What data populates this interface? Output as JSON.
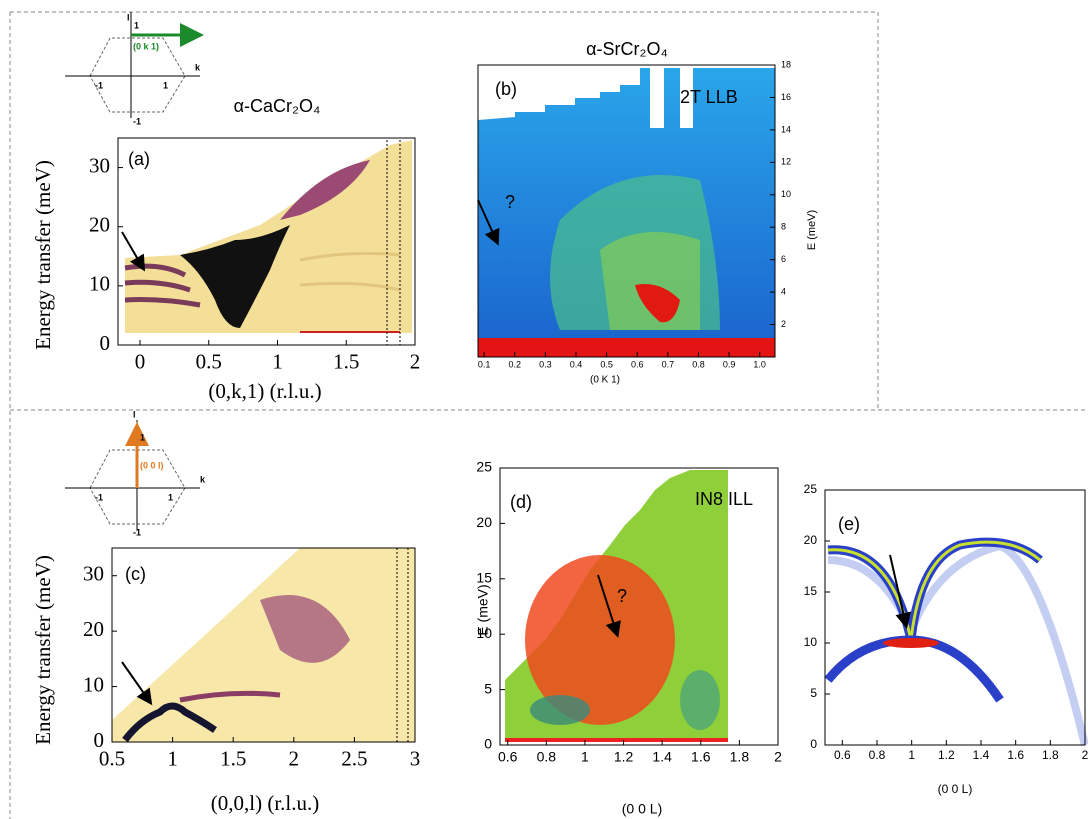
{
  "chart_data": [
    {
      "type": "heatmap",
      "panel_label": "(a)",
      "title": "α-CaCr₂O₄",
      "xlabel": "(0,k,1) (r.l.u.)",
      "ylabel": "Energy transfer (meV)",
      "xlim": [
        -0.16,
        2
      ],
      "ylim": [
        0,
        35
      ],
      "xticks": [
        0,
        0.5,
        1,
        1.5,
        2
      ],
      "yticks": [
        0,
        10,
        20,
        30
      ],
      "inset": {
        "labels": [
          "l",
          "1",
          "k",
          "-1",
          "1",
          "-1"
        ],
        "arrow_label": "(0 k 1)"
      }
    },
    {
      "type": "heatmap",
      "panel_label": "(b)",
      "title": "α-SrCr₂O₄",
      "xlabel": "(0 K 1)",
      "ylabel": "E (meV)",
      "y_axis_side": "right",
      "xlim": [
        0.08,
        1.05
      ],
      "ylim": [
        0,
        18
      ],
      "xticks": [
        0.1,
        0.2,
        0.3,
        0.4,
        0.5,
        0.6,
        0.7,
        0.8,
        0.9,
        {
          "value": 1,
          "label": "1.0"
        }
      ],
      "yticks": [
        2,
        4,
        6,
        8,
        10,
        12,
        14,
        16,
        18
      ],
      "annotations": [
        "2T LLB",
        "?"
      ]
    },
    {
      "type": "heatmap",
      "panel_label": "(c)",
      "xlabel": "(0,0,l) (r.l.u.)",
      "ylabel": "Energy transfer (meV)",
      "xlim": [
        0.5,
        3
      ],
      "ylim": [
        0,
        35
      ],
      "xticks": [
        0.5,
        1,
        1.5,
        2,
        2.5,
        3
      ],
      "yticks": [
        0,
        10,
        20,
        30
      ],
      "inset": {
        "labels": [
          "l",
          "1",
          "k",
          "-1",
          "1",
          "-1"
        ],
        "arrow_label": "(0 0 l)"
      }
    },
    {
      "type": "heatmap",
      "panel_label": "(d)",
      "xlabel": "(0 0 L)",
      "ylabel": "E (meV)",
      "xlim": [
        0.56,
        2
      ],
      "ylim": [
        0,
        25
      ],
      "xticks": [
        0.6,
        0.8,
        1,
        1.2,
        1.4,
        1.6,
        1.8,
        2
      ],
      "yticks": [
        0,
        5,
        10,
        15,
        20,
        25
      ],
      "annotations": [
        "IN8 ILL",
        "?"
      ]
    },
    {
      "type": "heatmap",
      "panel_label": "(e)",
      "xlabel": "(0 0 L)",
      "xlim": [
        0.5,
        2
      ],
      "ylim": [
        0,
        25
      ],
      "xticks": [
        0.6,
        0.8,
        1,
        1.2,
        1.4,
        1.6,
        1.8,
        2
      ],
      "yticks": [
        0,
        5,
        10,
        15,
        20,
        25
      ]
    }
  ]
}
